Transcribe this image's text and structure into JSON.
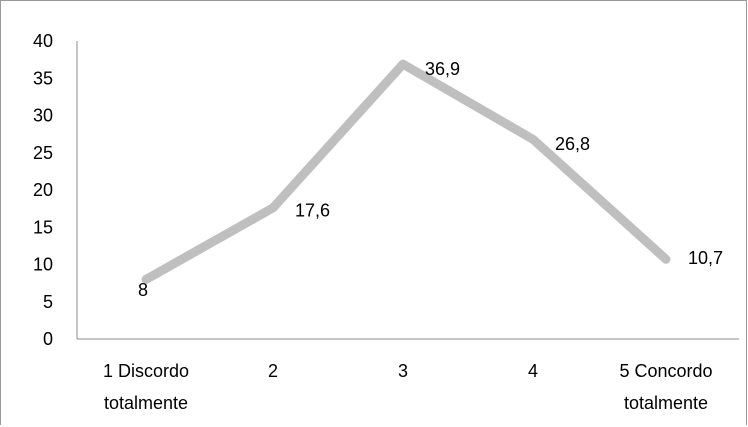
{
  "chart_data": {
    "type": "line",
    "title": "",
    "xlabel": "",
    "ylabel": "",
    "categories": [
      [
        "1 Discordo",
        "totalmente"
      ],
      [
        "2"
      ],
      [
        "3"
      ],
      [
        "4"
      ],
      [
        "5 Concordo",
        "totalmente"
      ]
    ],
    "series": [
      {
        "values": [
          8,
          17.6,
          36.9,
          26.8,
          10.7
        ],
        "labels": [
          "8",
          "17,6",
          "36,9",
          "26,8",
          "10,7"
        ],
        "color": "#bfbfbf"
      }
    ],
    "ylim": [
      0,
      40
    ],
    "yticks": [
      0,
      5,
      10,
      15,
      20,
      25,
      30,
      35,
      40
    ],
    "grid": false,
    "legend": "none"
  }
}
